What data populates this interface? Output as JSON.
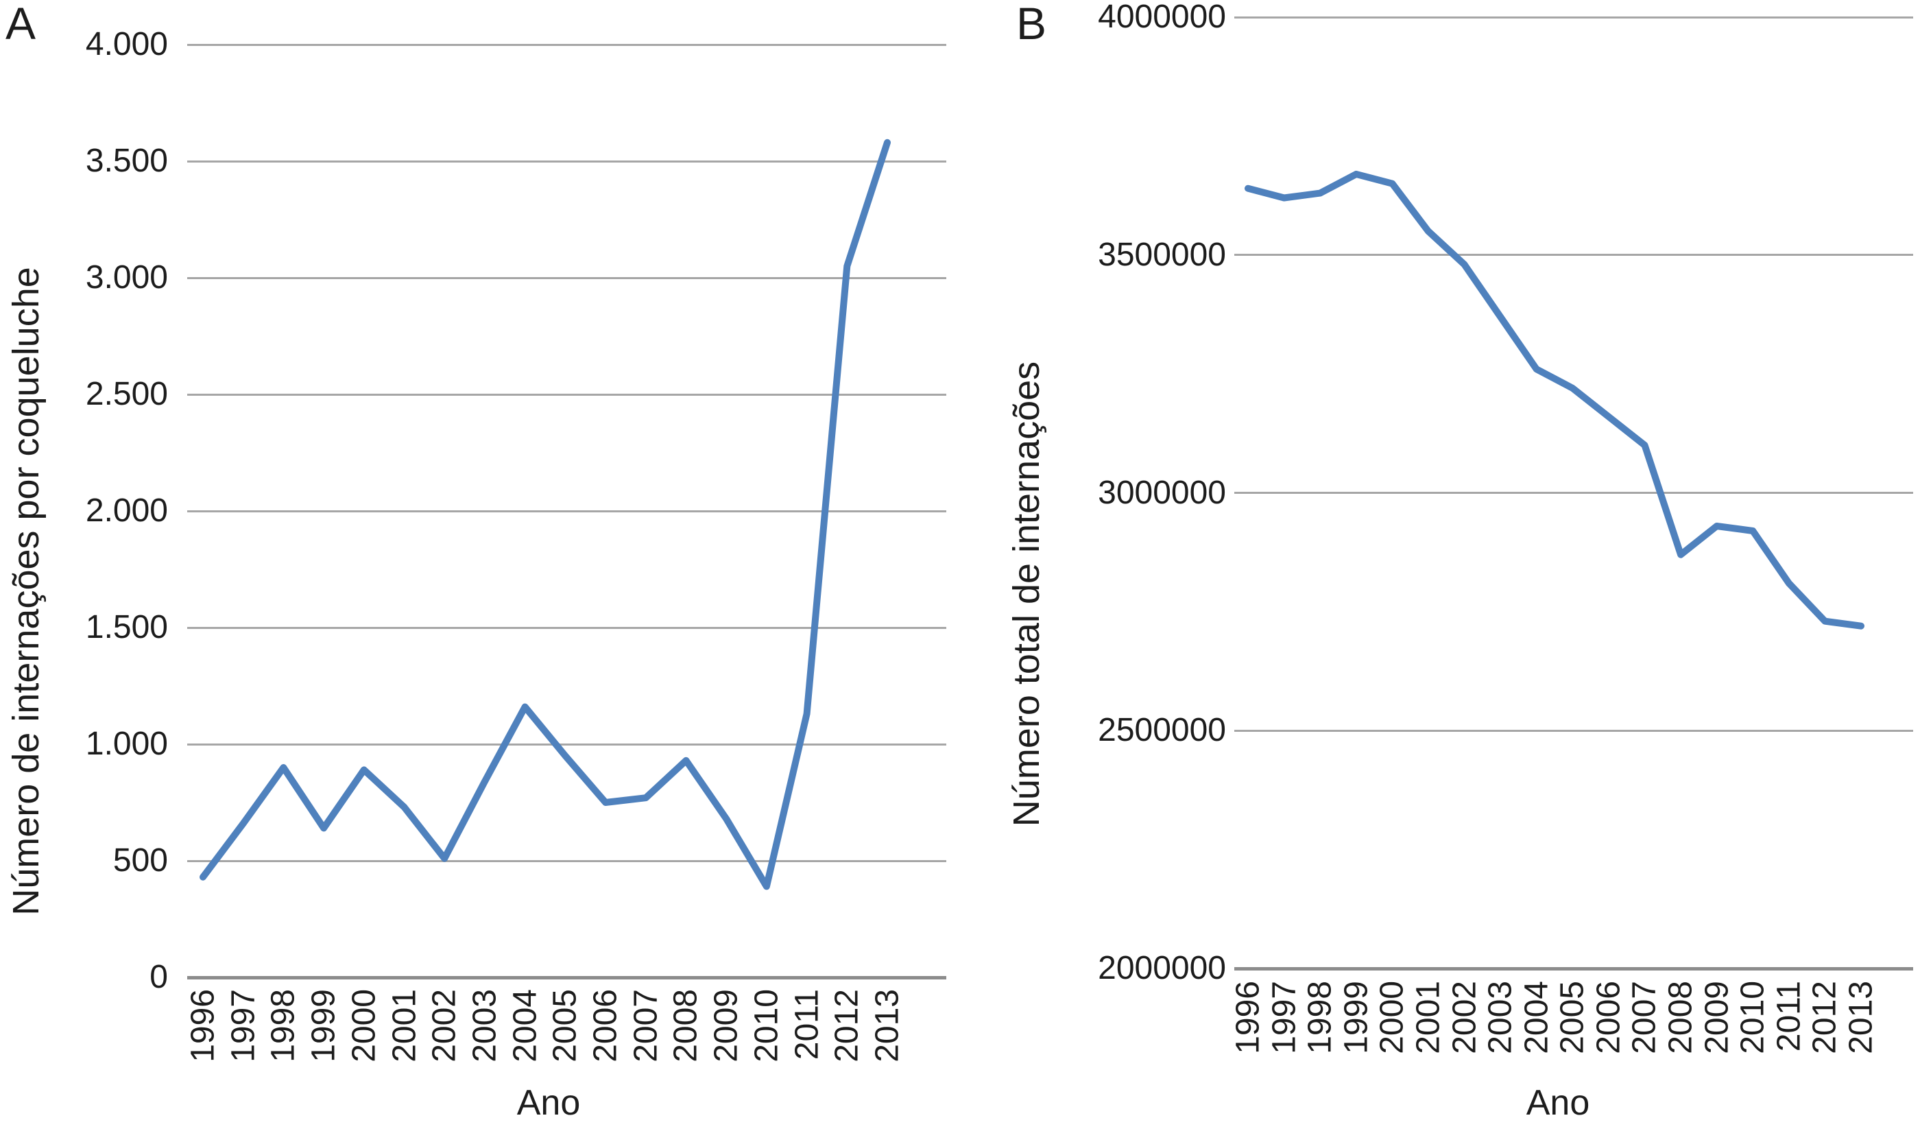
{
  "figure": {
    "background": "#ffffff",
    "text_color": "#1c1c1c"
  },
  "chart_data": [
    {
      "type": "line",
      "panel_label": "A",
      "title": "",
      "xlabel": "Ano",
      "ylabel": "Número de internações por coqueluche",
      "categories": [
        "1996",
        "1997",
        "1998",
        "1999",
        "2000",
        "2001",
        "2002",
        "2003",
        "2004",
        "2005",
        "2006",
        "2007",
        "2008",
        "2009",
        "2010",
        "2011",
        "2012",
        "2013"
      ],
      "values": [
        430,
        660,
        900,
        640,
        890,
        730,
        510,
        840,
        1160,
        950,
        750,
        770,
        930,
        680,
        390,
        1130,
        3050,
        3580
      ],
      "ylim": [
        0,
        4000
      ],
      "y_ticks": [
        {
          "value": 4000,
          "label": "4.000"
        },
        {
          "value": 3500,
          "label": "3.500"
        },
        {
          "value": 3000,
          "label": "3.000"
        },
        {
          "value": 2500,
          "label": "2.500"
        },
        {
          "value": 2000,
          "label": "2.000"
        },
        {
          "value": 1500,
          "label": "1.500"
        },
        {
          "value": 1000,
          "label": "1.000"
        },
        {
          "value": 500,
          "label": "500"
        },
        {
          "value": 0,
          "label": "0"
        }
      ],
      "grid": true,
      "legend": false,
      "line_color": "#4f81bd",
      "grid_color": "#a6a6a6",
      "axis_line_color": "#8c8c8c"
    },
    {
      "type": "line",
      "panel_label": "B",
      "title": "",
      "xlabel": "Ano",
      "ylabel": "Número total de internações",
      "categories": [
        "1996",
        "1997",
        "1998",
        "1999",
        "2000",
        "2001",
        "2002",
        "2003",
        "2004",
        "2005",
        "2006",
        "2007",
        "2008",
        "2009",
        "2010",
        "2011",
        "2012",
        "2013"
      ],
      "values": [
        3640000,
        3620000,
        3630000,
        3670000,
        3650000,
        3550000,
        3480000,
        3370000,
        3260000,
        3220000,
        3160000,
        3100000,
        2870000,
        2930000,
        2920000,
        2810000,
        2730000,
        2720000
      ],
      "ylim": [
        2000000,
        4000000
      ],
      "y_ticks": [
        {
          "value": 4000000,
          "label": "4000000"
        },
        {
          "value": 3500000,
          "label": "3500000"
        },
        {
          "value": 3000000,
          "label": "3000000"
        },
        {
          "value": 2500000,
          "label": "2500000"
        },
        {
          "value": 2000000,
          "label": "2000000"
        }
      ],
      "grid": true,
      "legend": false,
      "line_color": "#4f81bd",
      "grid_color": "#a6a6a6",
      "axis_line_color": "#8c8c8c"
    }
  ]
}
